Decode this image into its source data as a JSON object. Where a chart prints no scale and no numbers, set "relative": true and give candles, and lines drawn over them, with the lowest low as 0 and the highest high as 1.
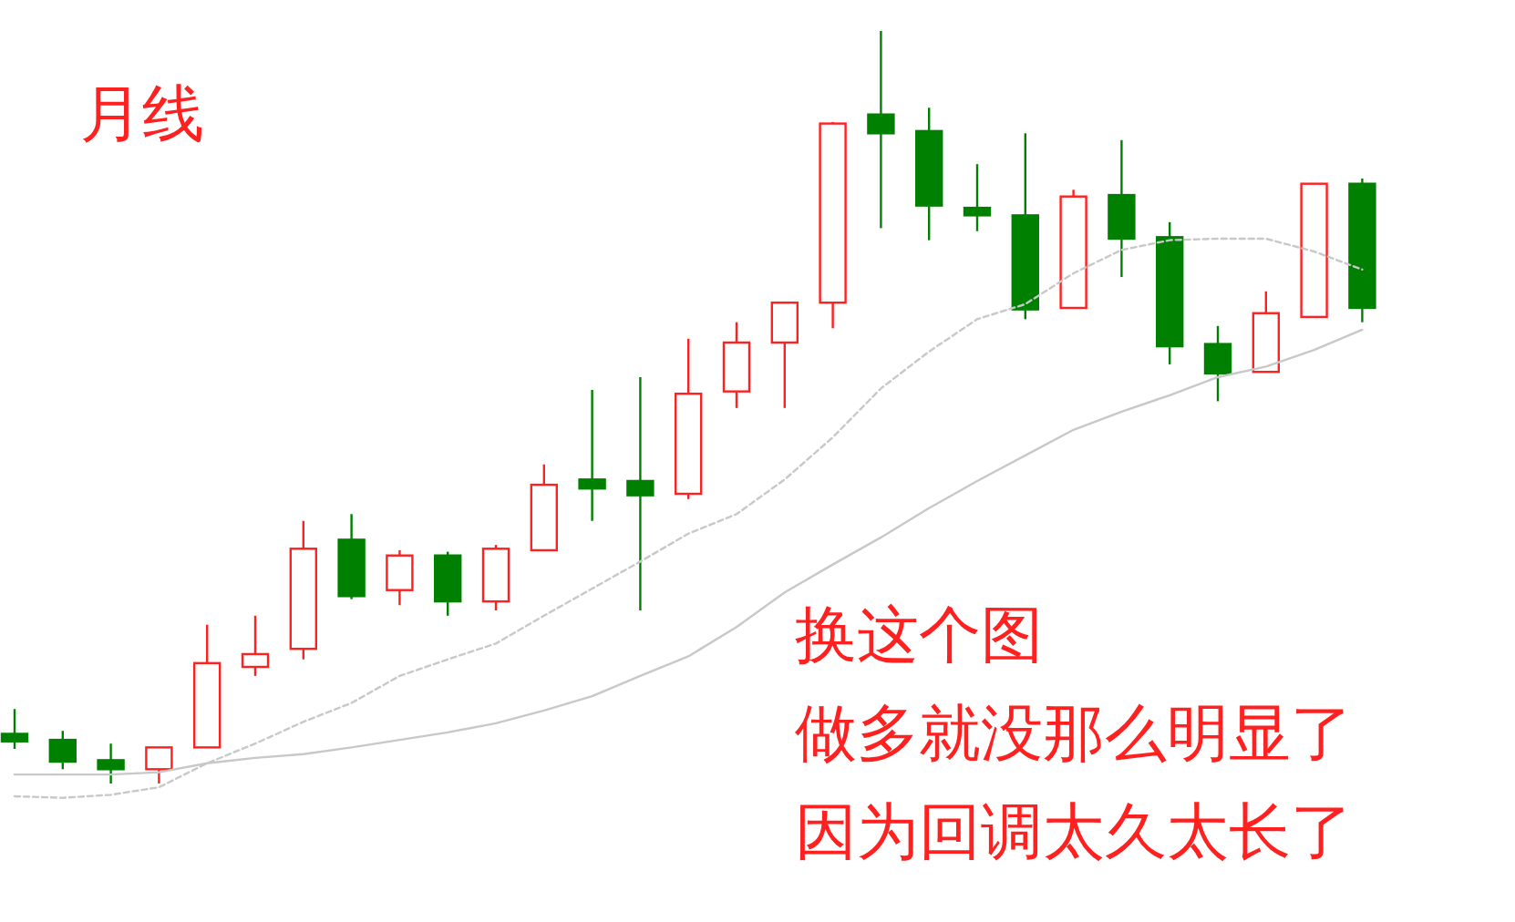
{
  "chart_data": {
    "type": "candlestick",
    "title": "月线",
    "relative": true,
    "annotations": [
      "换这个图",
      "做多就没那么明显了",
      "因为回调太久太长了"
    ],
    "categories": [
      null,
      null,
      null,
      null,
      null,
      null,
      null,
      null,
      null,
      null,
      null,
      null,
      null,
      null,
      null,
      null,
      null,
      null,
      null,
      null,
      null,
      null,
      null,
      null,
      null,
      null,
      null,
      null,
      null
    ],
    "ohlc": [
      [
        0.066,
        0.099,
        0.046,
        0.056
      ],
      [
        0.058,
        0.07,
        0.019,
        0.029
      ],
      [
        0.031,
        0.053,
        0,
        0.019
      ],
      [
        0.019,
        0.048,
        0,
        0.048
      ],
      [
        0.048,
        0.211,
        0.048,
        0.16
      ],
      [
        0.155,
        0.223,
        0.143,
        0.172
      ],
      [
        0.179,
        0.349,
        0.165,
        0.312
      ],
      [
        0.324,
        0.358,
        0.245,
        0.249
      ],
      [
        0.257,
        0.31,
        0.237,
        0.303
      ],
      [
        0.303,
        0.308,
        0.223,
        0.242
      ],
      [
        0.242,
        0.317,
        0.23,
        0.312
      ],
      [
        0.31,
        0.424,
        0.31,
        0.397
      ],
      [
        0.404,
        0.523,
        0.349,
        0.392
      ],
      [
        0.402,
        0.54,
        0.23,
        0.383
      ],
      [
        0.385,
        0.591,
        0.378,
        0.518
      ],
      [
        0.521,
        0.613,
        0.499,
        0.586
      ],
      [
        0.586,
        0.639,
        0.499,
        0.639
      ],
      [
        0.639,
        0.879,
        0.605,
        0.877
      ],
      [
        0.889,
        1,
        0.738,
        0.864
      ],
      [
        0.867,
        0.898,
        0.722,
        0.768
      ],
      [
        0.765,
        0.823,
        0.734,
        0.755
      ],
      [
        0.755,
        0.864,
        0.617,
        0.63
      ],
      [
        0.632,
        0.789,
        0.632,
        0.78
      ],
      [
        0.782,
        0.855,
        0.673,
        0.724
      ],
      [
        0.726,
        0.746,
        0.557,
        0.581
      ],
      [
        0.584,
        0.608,
        0.508,
        0.545
      ],
      [
        0.547,
        0.654,
        0.547,
        0.625
      ],
      [
        0.62,
        0.797,
        0.62,
        0.797
      ],
      [
        0.797,
        0.804,
        0.613,
        0.632
      ]
    ],
    "colors": [
      "#008000",
      "#008000",
      "#008000",
      "#ff2020",
      "#ff2020",
      "#ff2020",
      "#ff2020",
      "#008000",
      "#ff2020",
      "#008000",
      "#ff2020",
      "#ff2020",
      "#008000",
      "#008000",
      "#ff2020",
      "#ff2020",
      "#ff2020",
      "#ff2020",
      "#008000",
      "#008000",
      "#008000",
      "#008000",
      "#ff2020",
      "#008000",
      "#008000",
      "#008000",
      "#ff2020",
      "#ff2020",
      "#008000"
    ],
    "series": [
      {
        "type": "line",
        "color": "#c8c8c8",
        "line_style": "dashed",
        "values": [
          -0.017,
          -0.019,
          -0.015,
          -0.005,
          0.027,
          0.053,
          0.082,
          0.107,
          0.143,
          0.165,
          0.186,
          0.223,
          0.259,
          0.295,
          0.332,
          0.358,
          0.404,
          0.46,
          0.525,
          0.574,
          0.617,
          0.637,
          0.678,
          0.709,
          0.722,
          0.724,
          0.724,
          0.707,
          0.683
        ]
      },
      {
        "type": "line",
        "color": "#c8c8c8",
        "line_style": "solid",
        "values": [
          0.012,
          0.012,
          0.012,
          0.015,
          0.027,
          0.034,
          0.039,
          0.048,
          0.058,
          0.068,
          0.08,
          0.097,
          0.116,
          0.143,
          0.169,
          0.208,
          0.254,
          0.291,
          0.327,
          0.366,
          0.402,
          0.436,
          0.47,
          0.494,
          0.516,
          0.54,
          0.554,
          0.576,
          0.603
        ]
      }
    ]
  }
}
